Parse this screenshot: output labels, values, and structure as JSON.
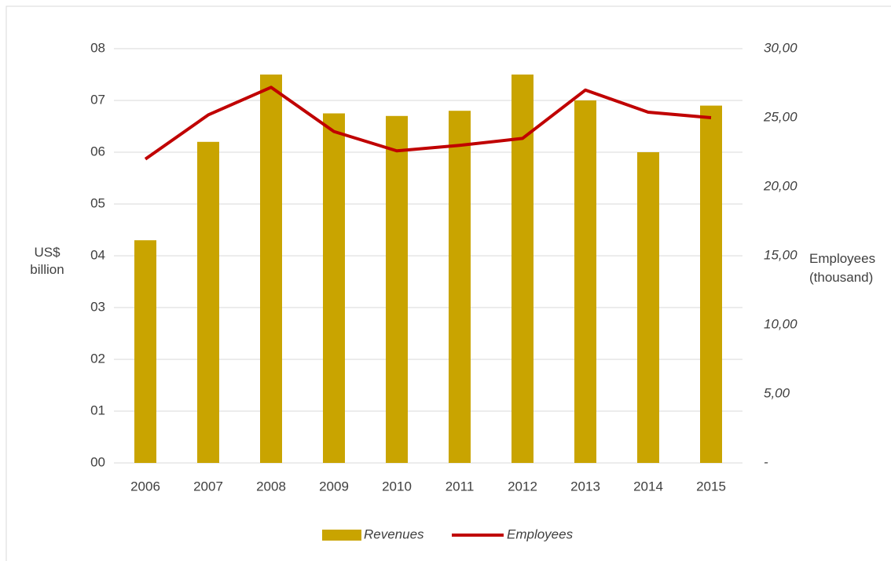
{
  "chart_data": {
    "type": "bar-line",
    "categories": [
      "2006",
      "2007",
      "2008",
      "2009",
      "2010",
      "2011",
      "2012",
      "2013",
      "2014",
      "2015"
    ],
    "series": [
      {
        "name": "Revenues",
        "type": "bar",
        "color": "#c9a400",
        "values": [
          4.3,
          6.2,
          7.5,
          6.75,
          6.7,
          6.8,
          7.5,
          7.0,
          6.0,
          6.9
        ]
      },
      {
        "name": "Employees",
        "type": "line",
        "axis": "y2",
        "color": "#c00000",
        "values": [
          22.0,
          25.2,
          27.2,
          24.0,
          22.6,
          23.0,
          23.5,
          27.0,
          25.4,
          25.0
        ]
      }
    ],
    "ylabel": [
      "US$",
      "billion"
    ],
    "y2label": [
      "Employees",
      "(thousand)"
    ],
    "ylim": [
      0,
      8
    ],
    "yticks": [
      {
        "value": 0,
        "label": "00"
      },
      {
        "value": 1,
        "label": "01"
      },
      {
        "value": 2,
        "label": "02"
      },
      {
        "value": 3,
        "label": "03"
      },
      {
        "value": 4,
        "label": "04"
      },
      {
        "value": 5,
        "label": "05"
      },
      {
        "value": 6,
        "label": "06"
      },
      {
        "value": 7,
        "label": "07"
      },
      {
        "value": 8,
        "label": "08"
      }
    ],
    "y2lim": [
      0,
      30
    ],
    "y2ticks": [
      {
        "value": 0,
        "label": "-"
      },
      {
        "value": 5,
        "label": "5,00"
      },
      {
        "value": 10,
        "label": "10,00"
      },
      {
        "value": 15,
        "label": "15,00"
      },
      {
        "value": 20,
        "label": "20,00"
      },
      {
        "value": 25,
        "label": "25,00"
      },
      {
        "value": 30,
        "label": "30,00"
      }
    ],
    "grid": true,
    "legend": "bottom"
  }
}
